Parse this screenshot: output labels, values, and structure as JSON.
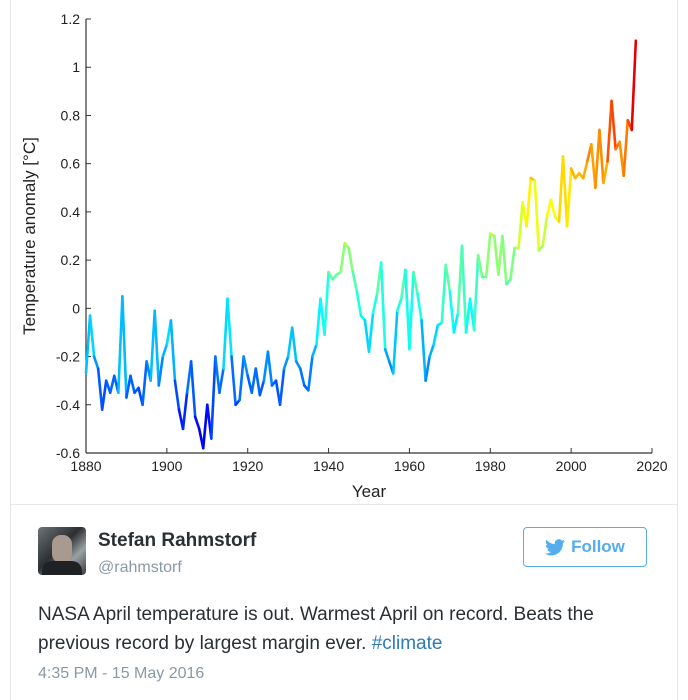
{
  "chart_data": {
    "type": "line",
    "title": "",
    "xlabel": "Year",
    "ylabel": "Temperature anomaly [°C]",
    "xlim": [
      1880,
      2020
    ],
    "ylim": [
      -0.6,
      1.2
    ],
    "xticks": [
      "1880",
      "1900",
      "1920",
      "1940",
      "1960",
      "1980",
      "2000",
      "2020"
    ],
    "yticks": [
      "-0.6",
      "-0.4",
      "-0.2",
      "0",
      "0.2",
      "0.4",
      "0.6",
      "0.8",
      "1",
      "1.2"
    ],
    "grid": false,
    "colormap": "jet (colored by value)",
    "x_start": 1880,
    "series": [
      {
        "name": "April temperature anomaly",
        "values": [
          -0.27,
          -0.03,
          -0.2,
          -0.25,
          -0.42,
          -0.3,
          -0.35,
          -0.28,
          -0.35,
          0.05,
          -0.37,
          -0.28,
          -0.35,
          -0.33,
          -0.4,
          -0.22,
          -0.3,
          -0.01,
          -0.32,
          -0.2,
          -0.15,
          -0.05,
          -0.3,
          -0.42,
          -0.5,
          -0.35,
          -0.22,
          -0.45,
          -0.5,
          -0.58,
          -0.4,
          -0.54,
          -0.2,
          -0.35,
          -0.25,
          0.04,
          -0.2,
          -0.4,
          -0.38,
          -0.2,
          -0.28,
          -0.35,
          -0.25,
          -0.36,
          -0.3,
          -0.18,
          -0.32,
          -0.3,
          -0.4,
          -0.25,
          -0.2,
          -0.08,
          -0.22,
          -0.25,
          -0.32,
          -0.34,
          -0.2,
          -0.15,
          0.04,
          -0.11,
          0.15,
          0.12,
          0.14,
          0.15,
          0.27,
          0.25,
          0.15,
          0.07,
          -0.03,
          -0.05,
          -0.18,
          -0.02,
          0.06,
          0.19,
          -0.17,
          -0.22,
          -0.27,
          -0.01,
          0.04,
          0.16,
          -0.17,
          0.15,
          0.06,
          -0.05,
          -0.3,
          -0.2,
          -0.15,
          -0.07,
          -0.06,
          0.18,
          0.07,
          -0.1,
          -0.02,
          0.26,
          -0.1,
          0.04,
          -0.09,
          0.22,
          0.13,
          0.13,
          0.31,
          0.3,
          0.14,
          0.3,
          0.1,
          0.12,
          0.25,
          0.25,
          0.44,
          0.34,
          0.54,
          0.53,
          0.24,
          0.26,
          0.38,
          0.45,
          0.38,
          0.36,
          0.63,
          0.34,
          0.58,
          0.54,
          0.56,
          0.54,
          0.61,
          0.68,
          0.5,
          0.74,
          0.52,
          0.61,
          0.86,
          0.66,
          0.69,
          0.55,
          0.78,
          0.74,
          1.11
        ]
      }
    ]
  },
  "tweet": {
    "author_name": "Stefan Rahmstorf",
    "author_handle": "@rahmstorf",
    "follow_label": "Follow",
    "text": "NASA April temperature is out. Warmest April on record. Beats the previous record by largest margin ever.",
    "hashtag": "#climate",
    "timestamp": "4:35 PM - 15 May 2016"
  },
  "colors": {
    "twitter_blue": "#55acee",
    "hashtag": "#2b7bb9",
    "text": "#292f33",
    "muted": "#8899a6"
  }
}
